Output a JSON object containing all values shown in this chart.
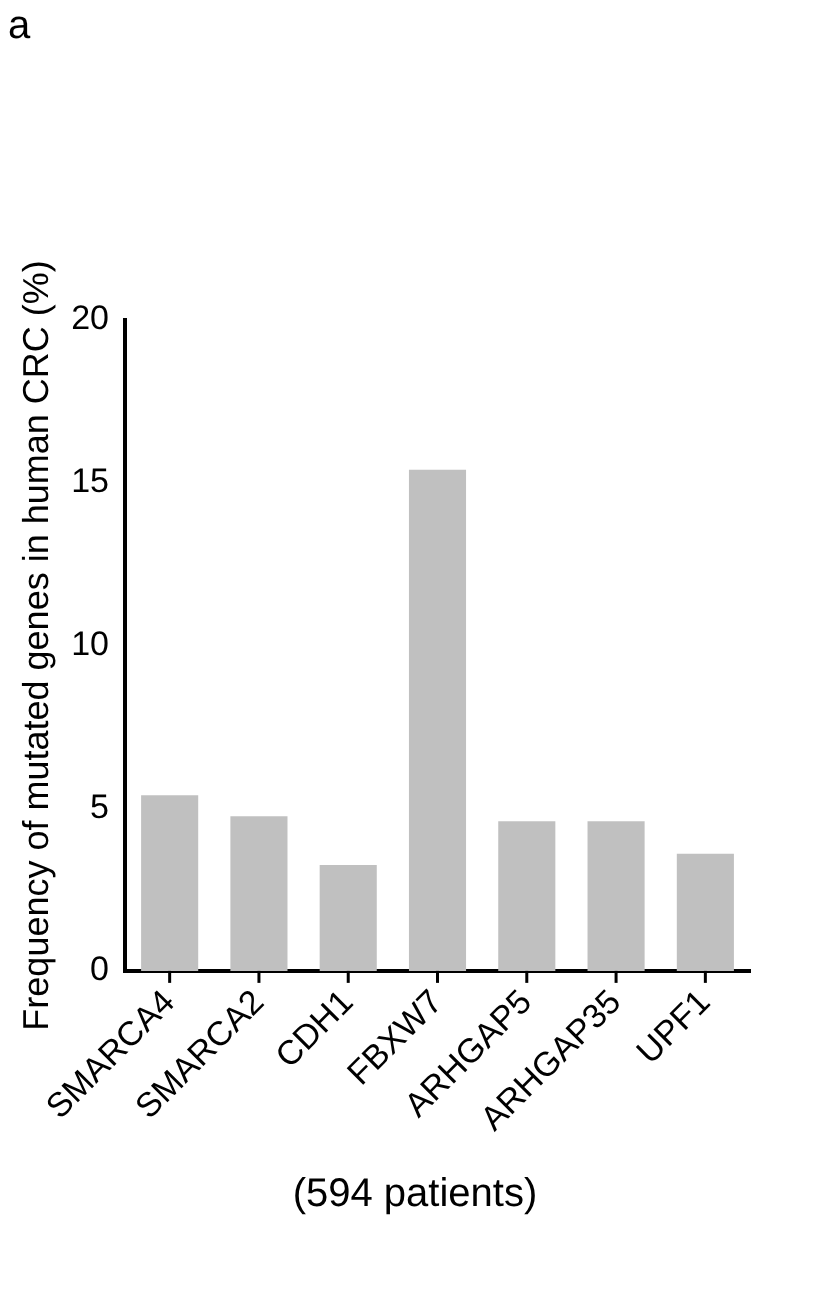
{
  "chart_data": {
    "type": "bar",
    "ylabel": "Frequency of mutated genes in human CRC (%)",
    "categories": [
      "SMARCA4",
      "SMARCA2",
      "CDH1",
      "FBXW7",
      "ARHGAP5",
      "ARHGAP35",
      "UPF1"
    ],
    "values": [
      5.4,
      4.75,
      3.25,
      15.4,
      4.6,
      4.6,
      3.6
    ],
    "color": "#c0c0c0",
    "ylim": [
      0,
      20
    ],
    "yticks": [
      0,
      5,
      10,
      15,
      20
    ],
    "grid": false,
    "legend": false,
    "annotations": [
      "a",
      "(594 patients)"
    ]
  }
}
